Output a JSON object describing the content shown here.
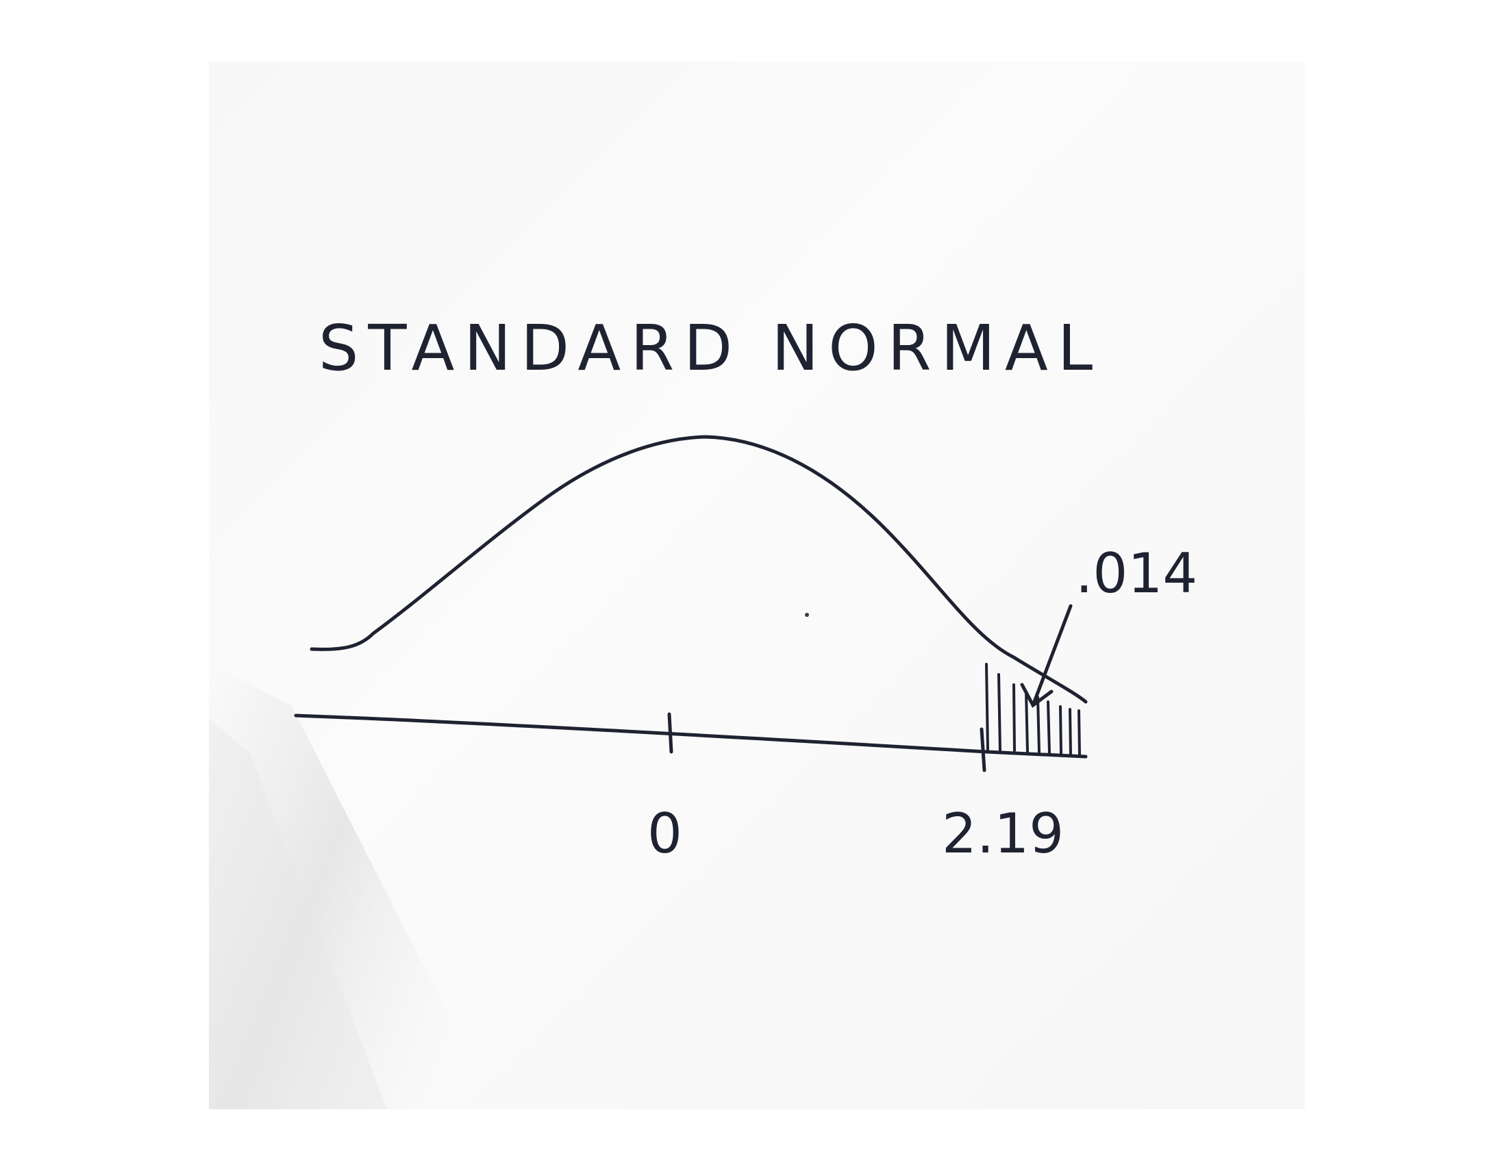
{
  "diagram": {
    "title": "STANDARD NORMAL",
    "tick_labels": [
      "0",
      "2.19"
    ],
    "tail_area_label": ".014",
    "ink_color": "#1f2230",
    "paper_color": "#f7f7f7"
  }
}
